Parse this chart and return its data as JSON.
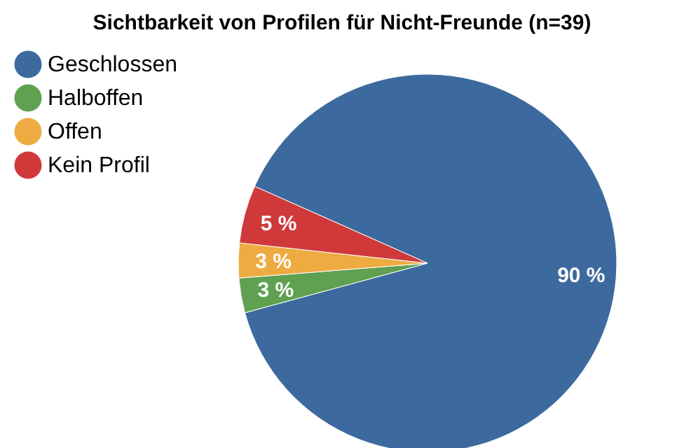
{
  "chart_data": {
    "type": "pie",
    "title": "Sichtbarkeit von Profilen für Nicht-Freunde (n=39)",
    "categories": [
      "Geschlossen",
      "Halboffen",
      "Offen",
      "Kein Profil"
    ],
    "values": [
      90,
      3,
      3,
      5
    ],
    "colors": [
      "#3d6a9e",
      "#5fa150",
      "#eeab41",
      "#d0393a"
    ],
    "value_labels": [
      "90 %",
      "3 %",
      "3 %",
      "5 %"
    ],
    "legend": "top left"
  }
}
